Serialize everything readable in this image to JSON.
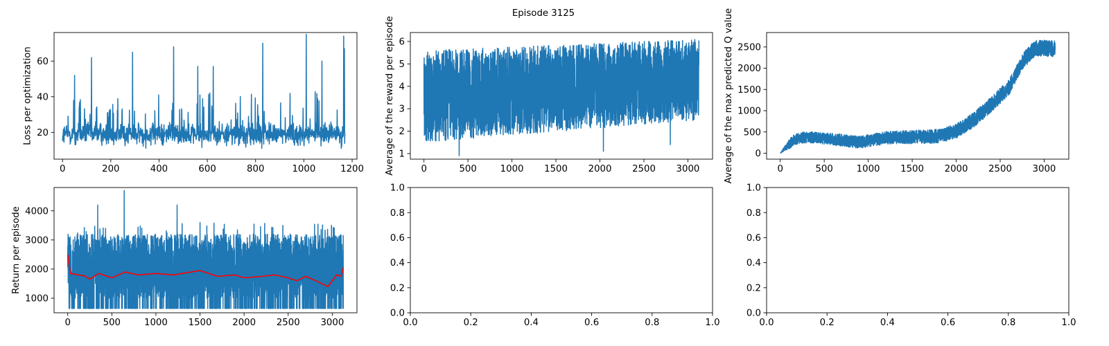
{
  "figure": {
    "suptitle": "Episode 3125"
  },
  "colors": {
    "primary_line": "#1f77b4",
    "mean_line": "#ff0000",
    "axis": "#000000",
    "background": "#ffffff"
  },
  "chart_data": [
    {
      "id": "loss",
      "type": "line",
      "title": "",
      "xlabel": "",
      "ylabel": "Loss per optimization",
      "xlim": [
        -35,
        1220
      ],
      "ylim": [
        5,
        76
      ],
      "xticks": [
        0,
        200,
        400,
        600,
        800,
        1000,
        1200
      ],
      "yticks": [
        20,
        40,
        60
      ],
      "x_range": [
        0,
        1170
      ],
      "series": [
        {
          "name": "loss",
          "color_key": "primary_line",
          "points_count": 1170,
          "baseline_mean": 19,
          "typical_min": 9,
          "notable_peaks": [
            [
              50,
              52
            ],
            [
              120,
              62
            ],
            [
              290,
              65
            ],
            [
              460,
              68
            ],
            [
              560,
              57
            ],
            [
              625,
              57
            ],
            [
              830,
              70
            ],
            [
              1010,
              75
            ],
            [
              1075,
              60
            ],
            [
              1165,
              74
            ],
            [
              1168,
              67
            ]
          ]
        }
      ]
    },
    {
      "id": "reward",
      "type": "line",
      "title": "",
      "xlabel": "",
      "ylabel": "Average of the reward per episode",
      "xlim": [
        -155,
        3280
      ],
      "ylim": [
        0.75,
        6.4
      ],
      "xticks": [
        0,
        500,
        1000,
        1500,
        2000,
        2500,
        3000
      ],
      "yticks": [
        1,
        2,
        3,
        4,
        5,
        6
      ],
      "x_range": [
        0,
        3125
      ],
      "series": [
        {
          "name": "reward",
          "color_key": "primary_line",
          "points_count": 3125,
          "band_start": [
            1.5,
            5.6
          ],
          "band_end": [
            2.5,
            6.1
          ],
          "notable_lows": [
            [
              400,
              0.9
            ],
            [
              2040,
              1.1
            ],
            [
              2800,
              1.4
            ]
          ]
        }
      ]
    },
    {
      "id": "q_value",
      "type": "line",
      "title": "",
      "xlabel": "",
      "ylabel": "Average of the max predicted Q value",
      "xlim": [
        -155,
        3280
      ],
      "ylim": [
        -140,
        2840
      ],
      "xticks": [
        0,
        500,
        1000,
        1500,
        2000,
        2500,
        3000
      ],
      "yticks": [
        0,
        500,
        1000,
        1500,
        2000,
        2500
      ],
      "x_range": [
        0,
        3125
      ],
      "series": [
        {
          "name": "q_value",
          "color_key": "primary_line",
          "points_count": 3125,
          "trend": [
            [
              0,
              0
            ],
            [
              150,
              320
            ],
            [
              300,
              380
            ],
            [
              600,
              330
            ],
            [
              900,
              260
            ],
            [
              1200,
              360
            ],
            [
              1500,
              380
            ],
            [
              1800,
              400
            ],
            [
              2000,
              520
            ],
            [
              2200,
              780
            ],
            [
              2400,
              1150
            ],
            [
              2600,
              1550
            ],
            [
              2750,
              2150
            ],
            [
              2900,
              2480
            ],
            [
              3125,
              2450
            ]
          ],
          "spread_start": 180,
          "spread_end": 280
        }
      ]
    },
    {
      "id": "return",
      "type": "line",
      "title": "",
      "xlabel": "",
      "ylabel": "Return per episode",
      "xlim": [
        -155,
        3280
      ],
      "ylim": [
        500,
        4800
      ],
      "xticks": [
        0,
        500,
        1000,
        1500,
        2000,
        2500,
        3000
      ],
      "yticks": [
        1000,
        2000,
        3000,
        4000
      ],
      "x_range": [
        0,
        3125
      ],
      "series": [
        {
          "name": "return",
          "color_key": "primary_line",
          "points_count": 3125,
          "floor": 650,
          "typical_max": 3200,
          "notable_peaks": [
            [
              340,
              4200
            ],
            [
              640,
              4700
            ],
            [
              1240,
              4200
            ],
            [
              1500,
              3600
            ],
            [
              2440,
              3500
            ]
          ]
        },
        {
          "name": "running mean",
          "color_key": "mean_line",
          "points": [
            [
              0,
              2500
            ],
            [
              30,
              1850
            ],
            [
              200,
              1760
            ],
            [
              250,
              1650
            ],
            [
              350,
              1850
            ],
            [
              500,
              1700
            ],
            [
              650,
              1900
            ],
            [
              800,
              1800
            ],
            [
              1000,
              1850
            ],
            [
              1200,
              1800
            ],
            [
              1400,
              1900
            ],
            [
              1500,
              1950
            ],
            [
              1700,
              1750
            ],
            [
              1900,
              1800
            ],
            [
              2000,
              1700
            ],
            [
              2200,
              1750
            ],
            [
              2350,
              1800
            ],
            [
              2500,
              1700
            ],
            [
              2600,
              1600
            ],
            [
              2700,
              1750
            ],
            [
              2850,
              1550
            ],
            [
              2950,
              1400
            ],
            [
              3050,
              1800
            ],
            [
              3100,
              1750
            ],
            [
              3125,
              2050
            ]
          ]
        }
      ]
    },
    {
      "id": "empty_1",
      "type": "line",
      "title": "",
      "xlabel": "",
      "ylabel": "",
      "xlim": [
        0,
        1
      ],
      "ylim": [
        0,
        1
      ],
      "xticks": [
        0.0,
        0.2,
        0.4,
        0.6,
        0.8,
        1.0
      ],
      "yticks": [
        0.0,
        0.2,
        0.4,
        0.6,
        0.8,
        1.0
      ],
      "tick_format": 1,
      "series": []
    },
    {
      "id": "empty_2",
      "type": "line",
      "title": "",
      "xlabel": "",
      "ylabel": "",
      "xlim": [
        0,
        1
      ],
      "ylim": [
        0,
        1
      ],
      "xticks": [
        0.0,
        0.2,
        0.4,
        0.6,
        0.8,
        1.0
      ],
      "yticks": [
        0.0,
        0.2,
        0.4,
        0.6,
        0.8,
        1.0
      ],
      "tick_format": 1,
      "series": []
    }
  ]
}
